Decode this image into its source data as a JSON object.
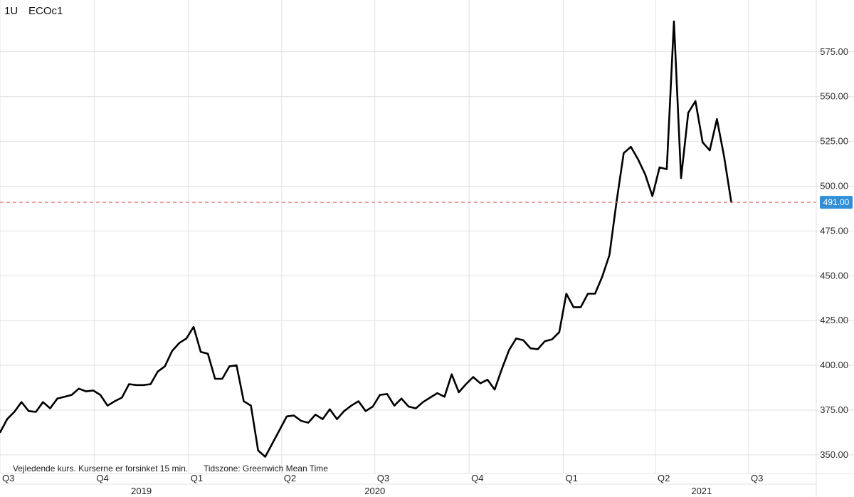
{
  "header": {
    "interval": "1U",
    "symbol": "ECOc1"
  },
  "footer_note": {
    "disclaimer": "Vejledende kurs. Kurserne er forsinket 15 min.",
    "timezone": "Tidszone: Greenwich Mean Time"
  },
  "colors": {
    "line": "#000000",
    "grid": "#e1e1e1",
    "last_price_line": "#e07a78",
    "last_price_badge": "#2f8fd8"
  },
  "chart_data": {
    "type": "line",
    "title": "",
    "ylim": [
      346,
      594
    ],
    "xlim": [
      "2019-07-01",
      "2021-09-05"
    ],
    "y_ticks": [
      {
        "value": 350,
        "label": "350.00"
      },
      {
        "value": 375,
        "label": "375.00"
      },
      {
        "value": 400,
        "label": "400.00"
      },
      {
        "value": 425,
        "label": "425.00"
      },
      {
        "value": 450,
        "label": "450.00"
      },
      {
        "value": 475,
        "label": "475.00"
      },
      {
        "value": 500,
        "label": "500.00"
      },
      {
        "value": 525,
        "label": "525.00"
      },
      {
        "value": 550,
        "label": "550.00"
      },
      {
        "value": 575,
        "label": "575.00"
      }
    ],
    "quarter_ticks": [
      {
        "date": "2019-07-01",
        "label": "Q3"
      },
      {
        "date": "2019-10-01",
        "label": "Q4"
      },
      {
        "date": "2020-01-01",
        "label": "Q1"
      },
      {
        "date": "2020-04-01",
        "label": "Q2"
      },
      {
        "date": "2020-07-01",
        "label": "Q3"
      },
      {
        "date": "2020-10-01",
        "label": "Q4"
      },
      {
        "date": "2021-01-01",
        "label": "Q1"
      },
      {
        "date": "2021-04-01",
        "label": "Q2"
      },
      {
        "date": "2021-07-01",
        "label": "Q3"
      }
    ],
    "year_labels": [
      {
        "date": "2019-11-16",
        "label": "2019"
      },
      {
        "date": "2020-07-01",
        "label": "2020"
      },
      {
        "date": "2021-05-16",
        "label": "2021"
      }
    ],
    "last_price": {
      "value": 491,
      "label": "491.00"
    },
    "series": [
      {
        "points": [
          [
            "2019-07-01",
            362.5
          ],
          [
            "2019-07-08",
            370.0
          ],
          [
            "2019-07-15",
            374.0
          ],
          [
            "2019-07-22",
            379.5
          ],
          [
            "2019-07-29",
            374.5
          ],
          [
            "2019-08-05",
            374.0
          ],
          [
            "2019-08-12",
            379.5
          ],
          [
            "2019-08-19",
            376.0
          ],
          [
            "2019-08-26",
            381.5
          ],
          [
            "2019-09-02",
            382.5
          ],
          [
            "2019-09-09",
            383.5
          ],
          [
            "2019-09-16",
            387.0
          ],
          [
            "2019-09-23",
            385.5
          ],
          [
            "2019-09-30",
            386.0
          ],
          [
            "2019-10-07",
            383.5
          ],
          [
            "2019-10-14",
            377.5
          ],
          [
            "2019-10-21",
            380.0
          ],
          [
            "2019-10-28",
            382.0
          ],
          [
            "2019-11-04",
            389.5
          ],
          [
            "2019-11-11",
            389.0
          ],
          [
            "2019-11-18",
            389.0
          ],
          [
            "2019-11-25",
            389.5
          ],
          [
            "2019-12-02",
            396.5
          ],
          [
            "2019-12-09",
            399.5
          ],
          [
            "2019-12-16",
            408.0
          ],
          [
            "2019-12-23",
            412.5
          ],
          [
            "2019-12-30",
            415.0
          ],
          [
            "2020-01-06",
            421.5
          ],
          [
            "2020-01-13",
            407.5
          ],
          [
            "2020-01-20",
            406.5
          ],
          [
            "2020-01-27",
            392.5
          ],
          [
            "2020-02-03",
            392.5
          ],
          [
            "2020-02-10",
            399.5
          ],
          [
            "2020-02-17",
            400.0
          ],
          [
            "2020-02-24",
            380.0
          ],
          [
            "2020-03-02",
            377.5
          ],
          [
            "2020-03-09",
            352.5
          ],
          [
            "2020-03-16",
            349.0
          ],
          [
            "2020-03-23",
            356.5
          ],
          [
            "2020-03-30",
            364.0
          ],
          [
            "2020-04-06",
            371.5
          ],
          [
            "2020-04-13",
            372.0
          ],
          [
            "2020-04-20",
            369.0
          ],
          [
            "2020-04-27",
            368.0
          ],
          [
            "2020-05-04",
            372.5
          ],
          [
            "2020-05-11",
            370.0
          ],
          [
            "2020-05-18",
            375.5
          ],
          [
            "2020-05-25",
            370.0
          ],
          [
            "2020-06-01",
            374.5
          ],
          [
            "2020-06-08",
            377.5
          ],
          [
            "2020-06-15",
            380.0
          ],
          [
            "2020-06-22",
            374.5
          ],
          [
            "2020-06-29",
            377.0
          ],
          [
            "2020-07-06",
            383.5
          ],
          [
            "2020-07-13",
            384.0
          ],
          [
            "2020-07-20",
            377.5
          ],
          [
            "2020-07-27",
            381.5
          ],
          [
            "2020-08-03",
            377.0
          ],
          [
            "2020-08-10",
            376.0
          ],
          [
            "2020-08-17",
            379.5
          ],
          [
            "2020-08-24",
            382.0
          ],
          [
            "2020-08-31",
            384.5
          ],
          [
            "2020-09-07",
            382.5
          ],
          [
            "2020-09-14",
            395.0
          ],
          [
            "2020-09-21",
            385.0
          ],
          [
            "2020-09-28",
            389.5
          ],
          [
            "2020-10-05",
            393.5
          ],
          [
            "2020-10-12",
            390.0
          ],
          [
            "2020-10-19",
            392.0
          ],
          [
            "2020-10-26",
            386.5
          ],
          [
            "2020-11-02",
            398.0
          ],
          [
            "2020-11-09",
            408.5
          ],
          [
            "2020-11-16",
            415.0
          ],
          [
            "2020-11-23",
            414.0
          ],
          [
            "2020-11-30",
            409.5
          ],
          [
            "2020-12-07",
            409.0
          ],
          [
            "2020-12-14",
            413.5
          ],
          [
            "2020-12-21",
            414.5
          ],
          [
            "2020-12-28",
            418.5
          ],
          [
            "2021-01-04",
            440.0
          ],
          [
            "2021-01-11",
            432.5
          ],
          [
            "2021-01-18",
            432.5
          ],
          [
            "2021-01-25",
            440.0
          ],
          [
            "2021-02-01",
            440.0
          ],
          [
            "2021-02-08",
            449.5
          ],
          [
            "2021-02-15",
            461.5
          ],
          [
            "2021-02-22",
            491.5
          ],
          [
            "2021-03-01",
            518.5
          ],
          [
            "2021-03-08",
            522.0
          ],
          [
            "2021-03-15",
            515.0
          ],
          [
            "2021-03-22",
            506.5
          ],
          [
            "2021-03-29",
            494.5
          ],
          [
            "2021-04-05",
            510.5
          ],
          [
            "2021-04-12",
            509.5
          ],
          [
            "2021-04-19",
            592.0
          ],
          [
            "2021-04-26",
            504.5
          ],
          [
            "2021-05-03",
            541.0
          ],
          [
            "2021-05-10",
            547.5
          ],
          [
            "2021-05-17",
            524.5
          ],
          [
            "2021-05-24",
            520.0
          ],
          [
            "2021-05-31",
            537.5
          ],
          [
            "2021-06-07",
            516.5
          ],
          [
            "2021-06-14",
            491.0
          ]
        ]
      }
    ]
  }
}
